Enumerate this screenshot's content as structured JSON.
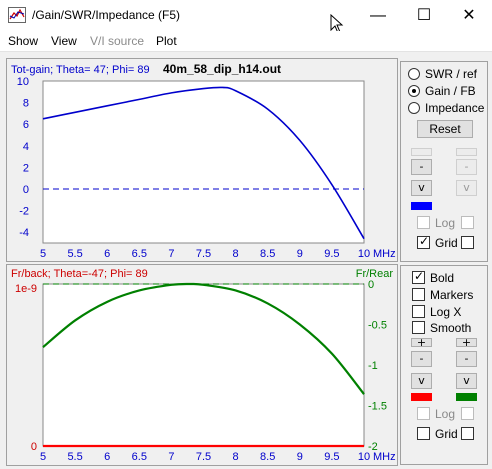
{
  "window": {
    "title": "/Gain/SWR/Impedance (F5)",
    "minimize": "—",
    "maximize": "☐",
    "close": "✕"
  },
  "menu": [
    {
      "label": "Show",
      "enabled": true
    },
    {
      "label": "View",
      "enabled": true
    },
    {
      "label": "V/I source",
      "enabled": false
    },
    {
      "label": "Plot",
      "enabled": true
    }
  ],
  "top_panel": {
    "chart_data": {
      "type": "line",
      "header_left": "Tot-gain; Theta= 47; Phi= 89",
      "header_title": "40m_58_dip_h14.out",
      "xunit": "MHz",
      "xlim": [
        5,
        10
      ],
      "ylim": [
        -5,
        10
      ],
      "xticks": [
        "5",
        "5.5",
        "6",
        "6.5",
        "7",
        "7.5",
        "8",
        "8.5",
        "9",
        "9.5",
        "10"
      ],
      "yticks": [
        "10",
        "8",
        "6",
        "4",
        "2",
        "0",
        "-2",
        "-4"
      ],
      "series": [
        {
          "line_color": "#0000cc",
          "x": [
            5.0,
            5.5,
            6.0,
            6.5,
            7.0,
            7.5,
            7.8,
            8.0,
            8.5,
            9.0,
            9.5,
            10.0
          ],
          "y": [
            6.5,
            7.1,
            7.7,
            8.3,
            8.9,
            9.3,
            9.4,
            9.1,
            7.4,
            4.5,
            0.4,
            -4.6
          ]
        }
      ],
      "reference_line": {
        "y": 0,
        "style": "dashed",
        "color": "#0000cc"
      }
    }
  },
  "bottom_panel": {
    "chart_data": {
      "type": "line",
      "header_left": "Fr/back; Theta=-47; Phi= 89",
      "right_axis_title": "Fr/Rear",
      "xunit": "MHz",
      "xlim": [
        5,
        10
      ],
      "left_ylim": [
        0,
        1e-09
      ],
      "left_yticks": [
        "1e-9",
        "0"
      ],
      "right_ylim": [
        -2,
        0
      ],
      "right_yticks": [
        "0",
        "-0.5",
        "-1",
        "-1.5",
        "-2"
      ],
      "xticks": [
        "5",
        "5.5",
        "6",
        "6.5",
        "7",
        "7.5",
        "8",
        "8.5",
        "9",
        "9.5",
        "10"
      ],
      "series": [
        {
          "axis": "right",
          "line_color": "#008000",
          "x": [
            5.0,
            5.5,
            6.0,
            6.5,
            7.0,
            7.3,
            7.5,
            8.0,
            8.5,
            9.0,
            9.5,
            10.0
          ],
          "y": [
            -0.78,
            -0.45,
            -0.22,
            -0.08,
            -0.01,
            0.0,
            -0.01,
            -0.08,
            -0.24,
            -0.5,
            -0.86,
            -1.36
          ]
        },
        {
          "axis": "left",
          "line_color": "#ff0000",
          "x": [
            5.0,
            10.0
          ],
          "y": [
            0,
            0
          ]
        }
      ],
      "reference_line": {
        "axis": "right",
        "y": 0,
        "style": "dashed",
        "color": "#008000"
      }
    }
  },
  "controls_top": {
    "radios": [
      {
        "label": "SWR / ref",
        "checked": false
      },
      {
        "label": "Gain / FB",
        "checked": true
      },
      {
        "label": "Impedance",
        "checked": false
      }
    ],
    "reset_label": "Reset",
    "step_up": "-",
    "step_down": "v",
    "series_color": "#0000ff",
    "log_label": "Log",
    "grid_label": "Grid"
  },
  "controls_bottom": {
    "bold_label": "Bold",
    "markers_label": "Markers",
    "logx_label": "Log X",
    "smooth_label": "Smooth",
    "step_plus": "+",
    "step_minus": "-",
    "step_down": "v",
    "left_color": "#ff0000",
    "right_color": "#008000",
    "log_label": "Log",
    "grid_label": "Grid"
  }
}
